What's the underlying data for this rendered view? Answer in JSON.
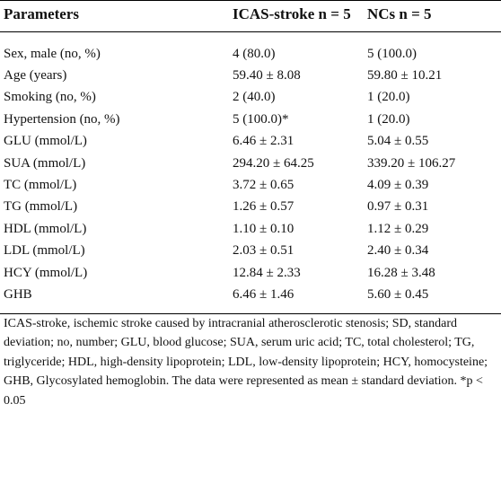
{
  "table": {
    "header": [
      "Parameters",
      "ICAS-stroke n = 5",
      "NCs n = 5"
    ],
    "rows": [
      [
        "Sex, male (no, %)",
        "4 (80.0)",
        "5 (100.0)"
      ],
      [
        "Age (years)",
        "59.40 ± 8.08",
        "59.80 ± 10.21"
      ],
      [
        "Smoking (no, %)",
        "2 (40.0)",
        "1 (20.0)"
      ],
      [
        "Hypertension (no, %)",
        "5 (100.0)*",
        "1 (20.0)"
      ],
      [
        "GLU (mmol/L)",
        "6.46 ± 2.31",
        "5.04 ± 0.55"
      ],
      [
        "SUA (mmol/L)",
        "294.20 ± 64.25",
        "339.20 ± 106.27"
      ],
      [
        "TC (mmol/L)",
        "3.72 ± 0.65",
        "4.09 ± 0.39"
      ],
      [
        "TG (mmol/L)",
        "1.26 ± 0.57",
        "0.97 ± 0.31"
      ],
      [
        "HDL (mmol/L)",
        "1.10 ± 0.10",
        "1.12 ± 0.29"
      ],
      [
        "LDL (mmol/L)",
        "2.03 ± 0.51",
        "2.40 ± 0.34"
      ],
      [
        "HCY (mmol/L)",
        "12.84 ± 2.33",
        "16.28 ± 3.48"
      ],
      [
        "GHB",
        "6.46 ± 1.46",
        "5.60 ± 0.45"
      ]
    ]
  },
  "footnote": {
    "text": "ICAS-stroke, ischemic stroke caused by intracranial atherosclerotic stenosis; SD, standard deviation; no, number; GLU, blood glucose; SUA, serum uric acid; TC, total cholesterol; TG, triglyceride; HDL, high-density lipoprotein; LDL, low-density lipoprotein; HCY, homocysteine; GHB, Glycosylated hemoglobin. The data were represented as mean ± standard deviation.",
    "significance": "*p < 0.05"
  }
}
